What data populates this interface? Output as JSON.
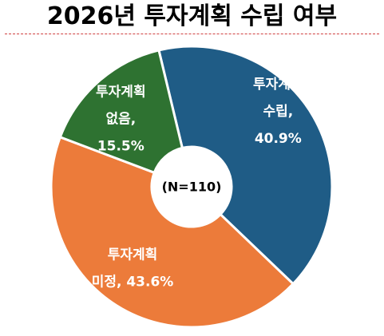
{
  "title": "2026년 투자계획 수립 여부",
  "chart_data": {
    "type": "pie",
    "donut": true,
    "center_label": "(N=110)",
    "categories": [
      "투자계획 수립",
      "투자계획 미정",
      "투자계획 없음"
    ],
    "values": [
      40.9,
      43.6,
      15.5
    ],
    "unit": "%",
    "colors": [
      "#1f5c86",
      "#ec7b3a",
      "#2e7231"
    ],
    "labels": [
      [
        "투자계획",
        "수립,",
        "40.9%"
      ],
      [
        "투자계획",
        "미정, 43.6%"
      ],
      [
        "투자계획",
        "없음,",
        "15.5%"
      ]
    ]
  }
}
